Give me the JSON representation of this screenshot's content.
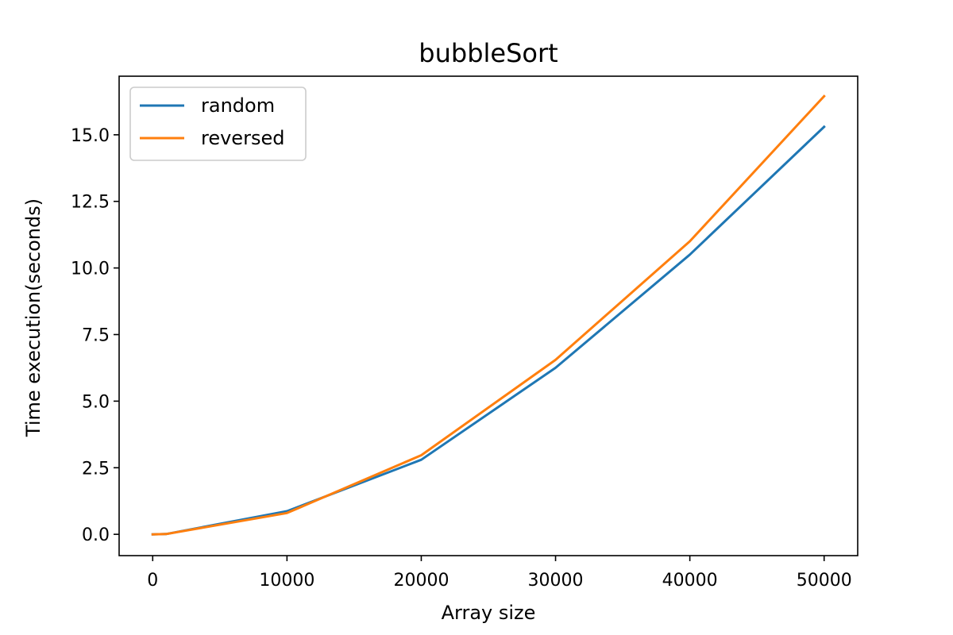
{
  "chart_data": {
    "type": "line",
    "title": "bubbleSort",
    "xlabel": "Array size",
    "ylabel": "Time execution(seconds)",
    "xlim": [
      -2500,
      52500
    ],
    "ylim": [
      -0.8,
      17.2
    ],
    "xticks": [
      0,
      10000,
      20000,
      30000,
      40000,
      50000
    ],
    "xtick_labels": [
      "0",
      "10000",
      "20000",
      "30000",
      "40000",
      "50000"
    ],
    "yticks": [
      0,
      2.5,
      5,
      7.5,
      10,
      12.5,
      15
    ],
    "ytick_labels": [
      "0.0",
      "2.5",
      "5.0",
      "7.5",
      "10.0",
      "12.5",
      "15.0"
    ],
    "grid": false,
    "legend_position": "top-left",
    "series": [
      {
        "name": "random",
        "color": "#1f77b4",
        "x": [
          0,
          1000,
          10000,
          20000,
          30000,
          40000,
          50000
        ],
        "y": [
          0.0,
          0.01,
          0.87,
          2.8,
          6.25,
          10.5,
          15.3
        ]
      },
      {
        "name": "reversed",
        "color": "#ff7f0e",
        "x": [
          0,
          1000,
          10000,
          20000,
          30000,
          40000,
          50000
        ],
        "y": [
          0.0,
          0.01,
          0.8,
          2.97,
          6.55,
          11.0,
          16.45
        ]
      }
    ]
  }
}
